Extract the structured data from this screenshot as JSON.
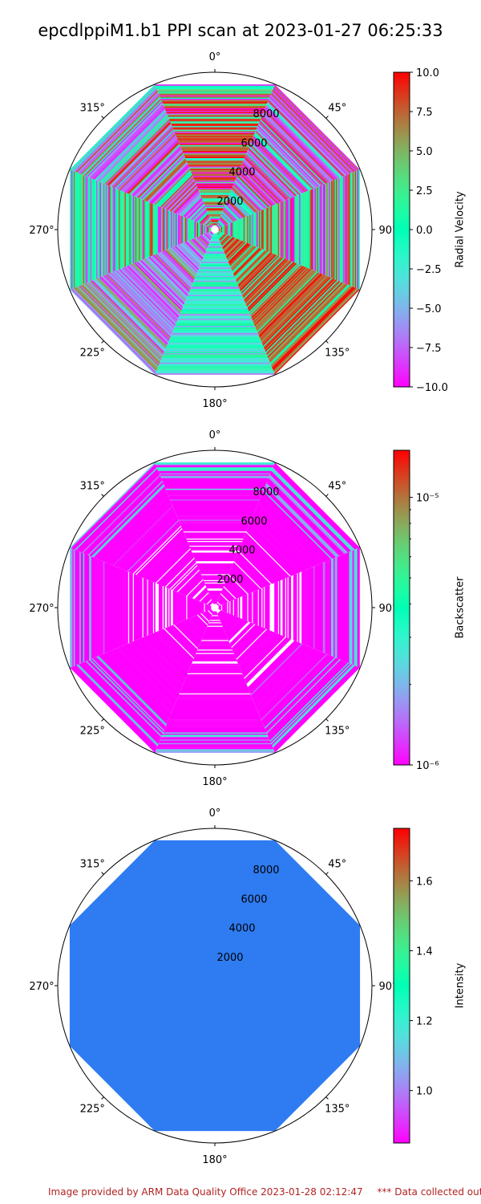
{
  "title": "epcdlppiM1.b1 PPI scan at 2023-01-27 06:25:33",
  "footer": {
    "credit": "Image provided by ARM Data Quality Office 2023-01-28 02:12:47",
    "warning": "*** Data collected outsid"
  },
  "chart_data": [
    {
      "type": "heatmap",
      "projection": "polar",
      "title": "",
      "theta_ticks": [
        "0°",
        "45°",
        "90°",
        "135°",
        "180°",
        "225°",
        "270°",
        "315°"
      ],
      "r_ticks": [
        "2000",
        "4000",
        "6000",
        "8000"
      ],
      "r_max": 10000,
      "scan_shape": "octagon",
      "colorbar": {
        "label": "Radial Velocity",
        "scale": "linear",
        "range": [
          -10.0,
          10.0
        ],
        "ticks": [
          "10.0",
          "7.5",
          "5.0",
          "2.5",
          "0.0",
          "−2.5",
          "−5.0",
          "−7.5",
          "−10.0"
        ],
        "colormap": "rainbow"
      },
      "sectors": [
        {
          "azimuth": 0,
          "dominant": "red / orange with purple and green streaks"
        },
        {
          "azimuth": 45,
          "dominant": "purple / blue with green and red streaks"
        },
        {
          "azimuth": 90,
          "dominant": "mixed green, red, purple"
        },
        {
          "azimuth": 135,
          "dominant": "orange / red"
        },
        {
          "azimuth": 180,
          "dominant": "cyan / green with blue"
        },
        {
          "azimuth": 225,
          "dominant": "blue / purple with orange"
        },
        {
          "azimuth": 270,
          "dominant": "green with purple and red"
        },
        {
          "azimuth": 315,
          "dominant": "purple / blue with red and green"
        }
      ]
    },
    {
      "type": "heatmap",
      "projection": "polar",
      "title": "",
      "theta_ticks": [
        "0°",
        "45°",
        "90°",
        "135°",
        "180°",
        "225°",
        "270°",
        "315°"
      ],
      "r_ticks": [
        "2000",
        "4000",
        "6000",
        "8000"
      ],
      "r_max": 10000,
      "scan_shape": "octagon",
      "colorbar": {
        "label": "Backscatter",
        "scale": "log",
        "range": [
          1e-06,
          1.5e-05
        ],
        "ticks": [
          "10⁻⁵",
          "10⁻⁶"
        ],
        "colormap": "rainbow"
      },
      "dominant": "purple (~1e-6) with white gaps, blue/cyan near outer edge"
    },
    {
      "type": "heatmap",
      "projection": "polar",
      "title": "",
      "theta_ticks": [
        "0°",
        "45°",
        "90°",
        "135°",
        "180°",
        "225°",
        "270°",
        "315°"
      ],
      "r_ticks": [
        "2000",
        "4000",
        "6000",
        "8000"
      ],
      "r_max": 10000,
      "scan_shape": "octagon",
      "colorbar": {
        "label": "Intensity",
        "scale": "linear",
        "range": [
          0.85,
          1.75
        ],
        "ticks": [
          "1.6",
          "1.4",
          "1.2",
          "1.0"
        ],
        "colormap": "rainbow"
      },
      "uniform_value": 1.0,
      "fill_color": "#2f7cf2"
    }
  ]
}
